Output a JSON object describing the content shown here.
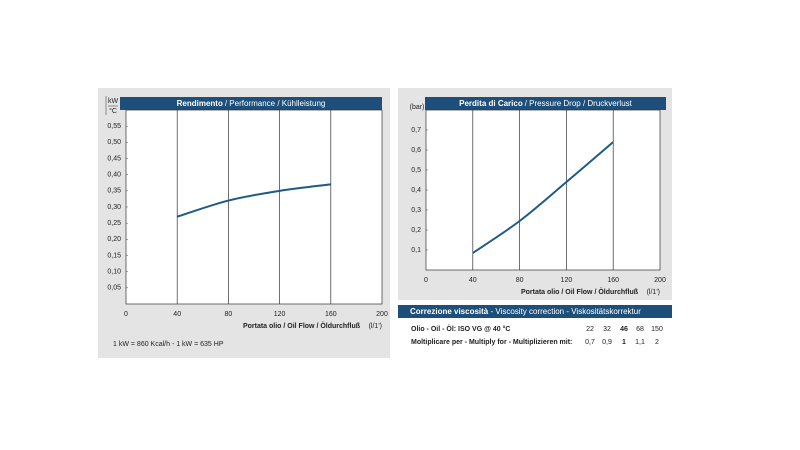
{
  "chart_data": [
    {
      "type": "line",
      "title": "Rendimento",
      "subtitle": "/ Performance / Kühlleistung",
      "ylabel": [
        "kW",
        "°C"
      ],
      "xlabel": "Portata olio / Oil Flow / Öldurchfluß",
      "xunit": "(l/1')",
      "x": [
        40,
        80,
        120,
        160
      ],
      "series": [
        {
          "color": "#1d5b86",
          "values": [
            0.27,
            0.32,
            0.35,
            0.37
          ]
        }
      ],
      "xlim": [
        0,
        200
      ],
      "xticks": [
        0,
        40,
        80,
        120,
        160,
        200
      ],
      "ylim": [
        0,
        0.6
      ],
      "yticks": [
        {
          "value": 0.05,
          "label": "0,05"
        },
        {
          "value": 0.1,
          "label": "0,10"
        },
        {
          "value": 0.15,
          "label": "0,15"
        },
        {
          "value": 0.2,
          "label": "0,20"
        },
        {
          "value": 0.25,
          "label": "0,25"
        },
        {
          "value": 0.3,
          "label": "0,30"
        },
        {
          "value": 0.35,
          "label": "0,35"
        },
        {
          "value": 0.4,
          "label": "0,40"
        },
        {
          "value": 0.45,
          "label": "0,45"
        },
        {
          "value": 0.5,
          "label": "0,50"
        },
        {
          "value": 0.55,
          "label": "0,55"
        }
      ],
      "grid": true,
      "note": "1 kW = 860 Kcal/h  - 1 kW = 635 HP"
    },
    {
      "type": "line",
      "title": "Perdita di Carico",
      "subtitle": "/ Pressure Drop / Druckverlust",
      "ylabel": [
        "(bar)"
      ],
      "xlabel": "Portata olio / Oil Flow  / Öldurchfluß",
      "xunit": "(l/1')",
      "x": [
        40,
        80,
        120,
        160
      ],
      "series": [
        {
          "color": "#1d5b86",
          "values": [
            0.085,
            0.245,
            0.44,
            0.64
          ]
        }
      ],
      "xlim": [
        0,
        200
      ],
      "xticks": [
        0,
        40,
        80,
        120,
        160,
        200
      ],
      "ylim": [
        0,
        0.8
      ],
      "yticks": [
        {
          "value": 0.1,
          "label": "0,1"
        },
        {
          "value": 0.2,
          "label": "0,2"
        },
        {
          "value": 0.3,
          "label": "0,3"
        },
        {
          "value": 0.4,
          "label": "0,4"
        },
        {
          "value": 0.5,
          "label": "0,5"
        },
        {
          "value": 0.6,
          "label": "0,6"
        },
        {
          "value": 0.7,
          "label": "0,7"
        }
      ],
      "grid": true
    }
  ],
  "viscosity_table": {
    "title": "Correzione viscosità",
    "subtitle": " -  Viscosity correction  -  Viskositätskorrektur",
    "rows": [
      {
        "label": "Olio - Oil - Öl: ISO VG @ 40 °C",
        "cells": [
          "22",
          "32",
          "46",
          "68",
          "150"
        ]
      },
      {
        "label": "Moltiplicare per - Multiply for - Multiplizieren mit:",
        "cells": [
          "0,7",
          "0,9",
          "1",
          "1,1",
          "2"
        ]
      }
    ]
  }
}
